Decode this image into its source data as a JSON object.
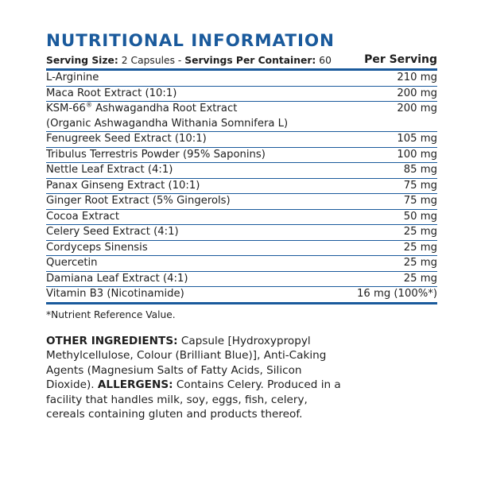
{
  "title": "NUTRITIONAL INFORMATION",
  "serving": {
    "size_label": "Serving Size:",
    "size_value": "2 Capsules -",
    "per_container_label": "Servings Per Container:",
    "per_container_value": "60"
  },
  "per_serving_header": "Per Serving",
  "rows": [
    {
      "name": "L-Arginine",
      "amount": "210 mg"
    },
    {
      "name": "Maca Root Extract (10:1)",
      "amount": "200 mg"
    },
    {
      "name_main": "KSM-66",
      "name_mark": "®",
      "name_rest": " Ashwagandha Root Extract",
      "name_sub": "(Organic Ashwagandha Withania Somnifera L)",
      "amount": "200 mg"
    },
    {
      "name": "Fenugreek Seed Extract (10:1)",
      "amount": "105 mg"
    },
    {
      "name": "Tribulus Terrestris Powder (95% Saponins)",
      "amount": "100 mg"
    },
    {
      "name": "Nettle Leaf Extract (4:1)",
      "amount": "85 mg"
    },
    {
      "name": "Panax Ginseng Extract (10:1)",
      "amount": "75 mg"
    },
    {
      "name": "Ginger Root Extract (5% Gingerols)",
      "amount": "75 mg"
    },
    {
      "name": "Cocoa Extract",
      "amount": "50 mg"
    },
    {
      "name": "Celery Seed Extract (4:1)",
      "amount": "25 mg"
    },
    {
      "name": "Cordyceps Sinensis",
      "amount": "25 mg"
    },
    {
      "name": "Quercetin",
      "amount": "25 mg"
    },
    {
      "name": "Damiana Leaf Extract (4:1)",
      "amount": "25 mg"
    },
    {
      "name": "Vitamin B3 (Nicotinamide)",
      "amount": "16 mg (100%*)"
    }
  ],
  "footnote": "*Nutrient Reference Value.",
  "other_ingredients": {
    "label": "OTHER INGREDIENTS:",
    "text": " Capsule [Hydroxypropyl Methylcellulose, Colour (Brilliant Blue)], Anti-Caking Agents (Magnesium Salts of Fatty Acids, Silicon Dioxide). ",
    "allergens_label": "ALLERGENS:",
    "allergens_text": " Contains Celery. Produced in a facility that handles milk, soy, eggs, fish, celery, cereals containing gluten and products thereof."
  },
  "colors": {
    "accent": "#1a5a9c",
    "text": "#1e1e1e",
    "background": "#ffffff"
  }
}
